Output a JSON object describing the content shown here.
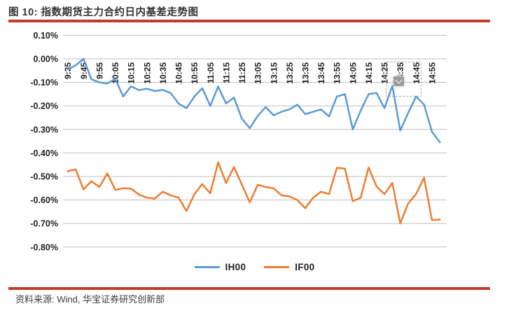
{
  "document": {
    "figure_title": "图 10: 指数期货主力合约日内基差走势图",
    "source_note": "资料来源: Wind, 华宝证券研究创新部",
    "accent_rule_color": "#c23b2b"
  },
  "chart_data": {
    "type": "line",
    "title": "图 10: 指数期货主力合约日内基差走势图",
    "x": [
      "9:35",
      "9:40",
      "9:45",
      "9:50",
      "9:55",
      "10:00",
      "10:05",
      "10:10",
      "10:15",
      "10:20",
      "10:25",
      "10:30",
      "10:35",
      "10:40",
      "10:45",
      "10:50",
      "10:55",
      "11:00",
      "11:05",
      "11:10",
      "11:15",
      "11:20",
      "11:25",
      "11:30",
      "13:05",
      "13:10",
      "13:15",
      "13:20",
      "13:25",
      "13:30",
      "13:35",
      "13:40",
      "13:45",
      "13:50",
      "13:55",
      "14:00",
      "14:05",
      "14:10",
      "14:15",
      "14:20",
      "14:25",
      "14:30",
      "14:35",
      "14:40",
      "14:45",
      "14:50",
      "14:55",
      "15:00"
    ],
    "x_label_every": 2,
    "series": [
      {
        "name": "IH00",
        "color": "#5b9bd5",
        "values": [
          -0.045,
          -0.028,
          0.0,
          -0.087,
          -0.1,
          -0.105,
          -0.085,
          -0.16,
          -0.117,
          -0.133,
          -0.127,
          -0.137,
          -0.132,
          -0.145,
          -0.19,
          -0.21,
          -0.16,
          -0.125,
          -0.2,
          -0.118,
          -0.19,
          -0.165,
          -0.255,
          -0.295,
          -0.243,
          -0.205,
          -0.24,
          -0.225,
          -0.215,
          -0.195,
          -0.235,
          -0.225,
          -0.215,
          -0.245,
          -0.16,
          -0.15,
          -0.3,
          -0.22,
          -0.15,
          -0.145,
          -0.21,
          -0.115,
          -0.305,
          -0.23,
          -0.16,
          -0.195,
          -0.31,
          -0.355
        ]
      },
      {
        "name": "IF00",
        "color": "#ed7d31",
        "values": [
          -0.478,
          -0.47,
          -0.555,
          -0.52,
          -0.545,
          -0.487,
          -0.557,
          -0.55,
          -0.552,
          -0.577,
          -0.59,
          -0.594,
          -0.565,
          -0.58,
          -0.59,
          -0.647,
          -0.575,
          -0.532,
          -0.572,
          -0.44,
          -0.528,
          -0.46,
          -0.535,
          -0.61,
          -0.535,
          -0.545,
          -0.55,
          -0.58,
          -0.585,
          -0.6,
          -0.635,
          -0.59,
          -0.565,
          -0.575,
          -0.463,
          -0.467,
          -0.605,
          -0.59,
          -0.462,
          -0.543,
          -0.575,
          -0.527,
          -0.7,
          -0.615,
          -0.575,
          -0.505,
          -0.685,
          -0.683
        ]
      }
    ],
    "y_tick_labels": [
      "0.10%",
      "0.00%",
      "-0.10%",
      "-0.20%",
      "-0.30%",
      "-0.40%",
      "-0.50%",
      "-0.60%",
      "-0.70%",
      "-0.80%"
    ],
    "y_tick_values": [
      0.1,
      0.0,
      -0.1,
      -0.2,
      -0.3,
      -0.4,
      -0.5,
      -0.6,
      -0.7,
      -0.8
    ],
    "ylim": [
      -0.8,
      0.1
    ],
    "unit": "percent",
    "grid": true,
    "legend_position": "bottom",
    "grid_color": "#bfbfbf",
    "axis_text_color": "#1f1f1f"
  },
  "annotations": {
    "selection_box": {
      "over_labels": [
        "14:25",
        "14:35"
      ]
    },
    "dropdown_button": {
      "icon": "chevron-down-icon"
    }
  }
}
